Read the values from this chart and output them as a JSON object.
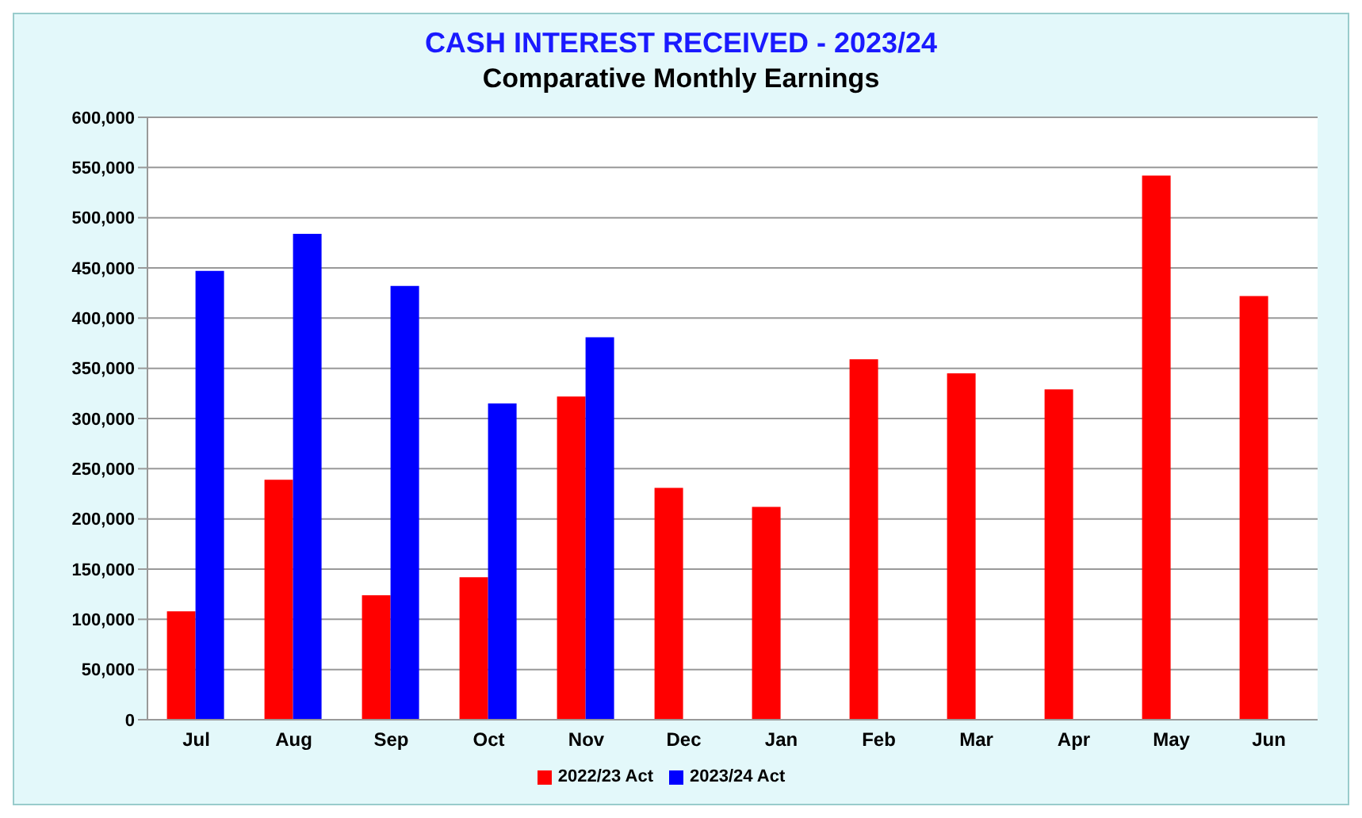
{
  "chart_data": {
    "type": "bar",
    "title": "CASH INTEREST RECEIVED - 2023/24",
    "subtitle": "Comparative Monthly Earnings",
    "categories": [
      "Jul",
      "Aug",
      "Sep",
      "Oct",
      "Nov",
      "Dec",
      "Jan",
      "Feb",
      "Mar",
      "Apr",
      "May",
      "Jun"
    ],
    "series": [
      {
        "name": "2022/23 Act",
        "color": "#ff0000",
        "values": [
          108000,
          239000,
          124000,
          142000,
          322000,
          231000,
          212000,
          359000,
          345000,
          329000,
          542000,
          422000
        ]
      },
      {
        "name": "2023/24 Act",
        "color": "#0000ff",
        "values": [
          447000,
          484000,
          432000,
          315000,
          381000,
          null,
          null,
          null,
          null,
          null,
          null,
          null
        ]
      }
    ],
    "ylim": [
      0,
      600000
    ],
    "yticks": [
      {
        "value": 0,
        "label": "0"
      },
      {
        "value": 50000,
        "label": "50,000"
      },
      {
        "value": 100000,
        "label": "100,000"
      },
      {
        "value": 150000,
        "label": "150,000"
      },
      {
        "value": 200000,
        "label": "200,000"
      },
      {
        "value": 250000,
        "label": "250,000"
      },
      {
        "value": 300000,
        "label": "300,000"
      },
      {
        "value": 350000,
        "label": "350,000"
      },
      {
        "value": 400000,
        "label": "400,000"
      },
      {
        "value": 450000,
        "label": "450,000"
      },
      {
        "value": 500000,
        "label": "500,000"
      },
      {
        "value": 550000,
        "label": "550,000"
      },
      {
        "value": 600000,
        "label": "600,000"
      }
    ],
    "grid": "y",
    "legend": "bottom"
  }
}
